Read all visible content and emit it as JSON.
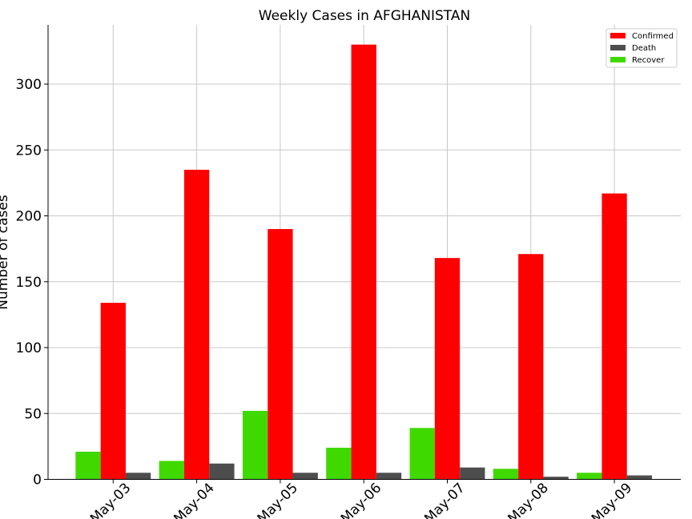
{
  "chart_data": {
    "type": "bar",
    "title": "Weekly Cases in AFGHANISTAN",
    "xlabel": "",
    "ylabel": "Number of cases",
    "categories": [
      "May-03",
      "May-04",
      "May-05",
      "May-06",
      "May-07",
      "May-08",
      "May-09"
    ],
    "series": [
      {
        "name": "Confirmed",
        "color": "#ff0000",
        "values": [
          134,
          235,
          190,
          330,
          168,
          171,
          217
        ]
      },
      {
        "name": "Death",
        "color": "#4d4d4d",
        "values": [
          5,
          12,
          5,
          5,
          9,
          2,
          3
        ]
      },
      {
        "name": "Recover",
        "color": "#3fd900",
        "values": [
          21,
          14,
          52,
          24,
          39,
          8,
          5
        ]
      }
    ],
    "ylim": [
      0,
      345
    ],
    "yticks": [
      0,
      50,
      100,
      150,
      200,
      250,
      300
    ],
    "grid": true,
    "legend_position": "top-right"
  }
}
